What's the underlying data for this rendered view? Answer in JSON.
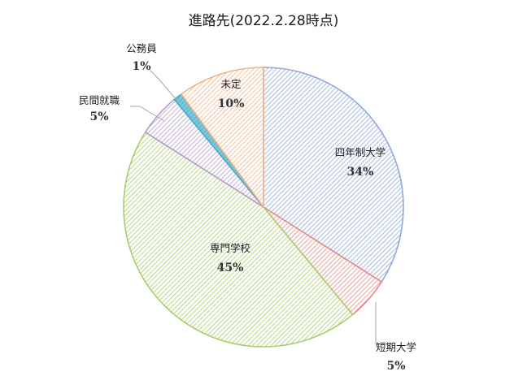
{
  "chart_data": {
    "type": "pie",
    "title": "進路先(2022.2.28時点)",
    "slices": [
      {
        "label": "四年制大学",
        "value": 34,
        "pct_label": "34%",
        "color": "#8faadc",
        "fill": "#ffffff"
      },
      {
        "label": "短期大学",
        "value": 5,
        "pct_label": "5%",
        "color": "#e58b89",
        "fill": "#ffffff"
      },
      {
        "label": "専門学校",
        "value": 45,
        "pct_label": "45%",
        "color": "#a9cd6c",
        "fill": "#ffffff"
      },
      {
        "label": "民間就職",
        "value": 5,
        "pct_label": "5%",
        "color": "#b49dcc",
        "fill": "#ffffff"
      },
      {
        "label": "公務員",
        "value": 1,
        "pct_label": "1%",
        "color": "#4bacc6",
        "fill": "#7fc8dc"
      },
      {
        "label": "未定",
        "value": 10,
        "pct_label": "10%",
        "color": "#f4b183",
        "fill": "#ffffff"
      }
    ],
    "start": "12 o'clock",
    "direction": "clockwise",
    "legend": "none",
    "labels": "data labels with leader lines for small slices"
  }
}
